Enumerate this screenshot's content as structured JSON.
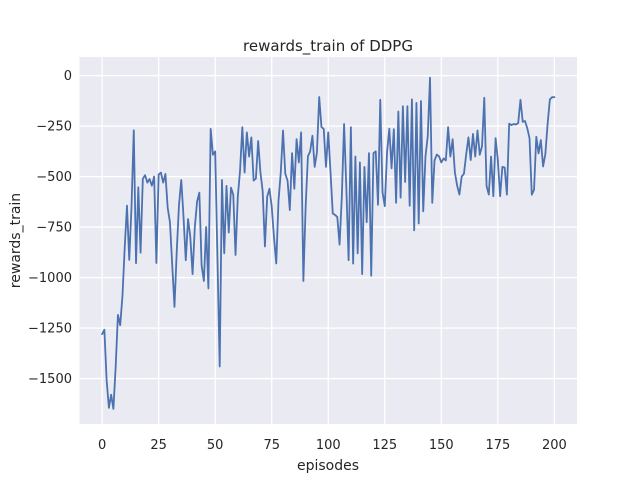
{
  "figure": {
    "background": "#ffffff"
  },
  "chart_data": {
    "type": "line",
    "title": "rewards_train of DDPG",
    "xlabel": "episodes",
    "ylabel": "rewards_train",
    "x_ticks": [
      0,
      25,
      50,
      75,
      100,
      125,
      150,
      175,
      200
    ],
    "y_ticks": [
      0,
      -250,
      -500,
      -750,
      -1000,
      -1250,
      -1500
    ],
    "xlim": [
      -10,
      210
    ],
    "ylim": [
      -1725,
      92
    ],
    "grid": true,
    "legend_position": "none",
    "axes_background": "#eaeaf2",
    "grid_color": "#ffffff",
    "line_color": "#4c72b0",
    "text_color": "#262626",
    "series": [
      {
        "name": "rewards_train",
        "x_start": 0,
        "x_step": 1,
        "values": [
          -1280,
          -1258,
          -1510,
          -1645,
          -1580,
          -1650,
          -1440,
          -1185,
          -1236,
          -1090,
          -850,
          -644,
          -912,
          -650,
          -271,
          -929,
          -553,
          -877,
          -511,
          -493,
          -530,
          -512,
          -545,
          -500,
          -928,
          -490,
          -480,
          -530,
          -487,
          -655,
          -726,
          -937,
          -1145,
          -870,
          -640,
          -517,
          -700,
          -914,
          -710,
          -800,
          -983,
          -750,
          -623,
          -580,
          -940,
          -1017,
          -750,
          -1054,
          -264,
          -392,
          -375,
          -900,
          -1440,
          -517,
          -880,
          -546,
          -777,
          -555,
          -590,
          -888,
          -600,
          -470,
          -255,
          -480,
          -281,
          -401,
          -306,
          -520,
          -510,
          -324,
          -478,
          -572,
          -846,
          -600,
          -560,
          -649,
          -800,
          -930,
          -620,
          -480,
          -272,
          -486,
          -520,
          -666,
          -384,
          -560,
          -315,
          -430,
          -281,
          -1017,
          -650,
          -400,
          -375,
          -298,
          -452,
          -380,
          -106,
          -255,
          -264,
          -452,
          -281,
          -478,
          -683,
          -690,
          -700,
          -837,
          -600,
          -240,
          -555,
          -914,
          -255,
          -931,
          -401,
          -880,
          -430,
          -983,
          -452,
          -726,
          -384,
          -991,
          -384,
          -375,
          -640,
          -120,
          -578,
          -646,
          -380,
          -263,
          -459,
          -265,
          -630,
          -178,
          -604,
          -152,
          -527,
          -152,
          -645,
          -118,
          -766,
          -135,
          -732,
          -126,
          -672,
          -400,
          -300,
          -10,
          -630,
          -420,
          -391,
          -400,
          -430,
          -410,
          -420,
          -255,
          -401,
          -315,
          -480,
          -545,
          -589,
          -500,
          -486,
          -390,
          -306,
          -418,
          -289,
          -401,
          -272,
          -392,
          -350,
          -110,
          -546,
          -589,
          -401,
          -597,
          -310,
          -420,
          -597,
          -452,
          -455,
          -589,
          -238,
          -245,
          -240,
          -242,
          -235,
          -120,
          -229,
          -225,
          -260,
          -310,
          -590,
          -565,
          -303,
          -385,
          -319,
          -450,
          -389,
          -240,
          -118,
          -107,
          -107
        ]
      }
    ]
  }
}
